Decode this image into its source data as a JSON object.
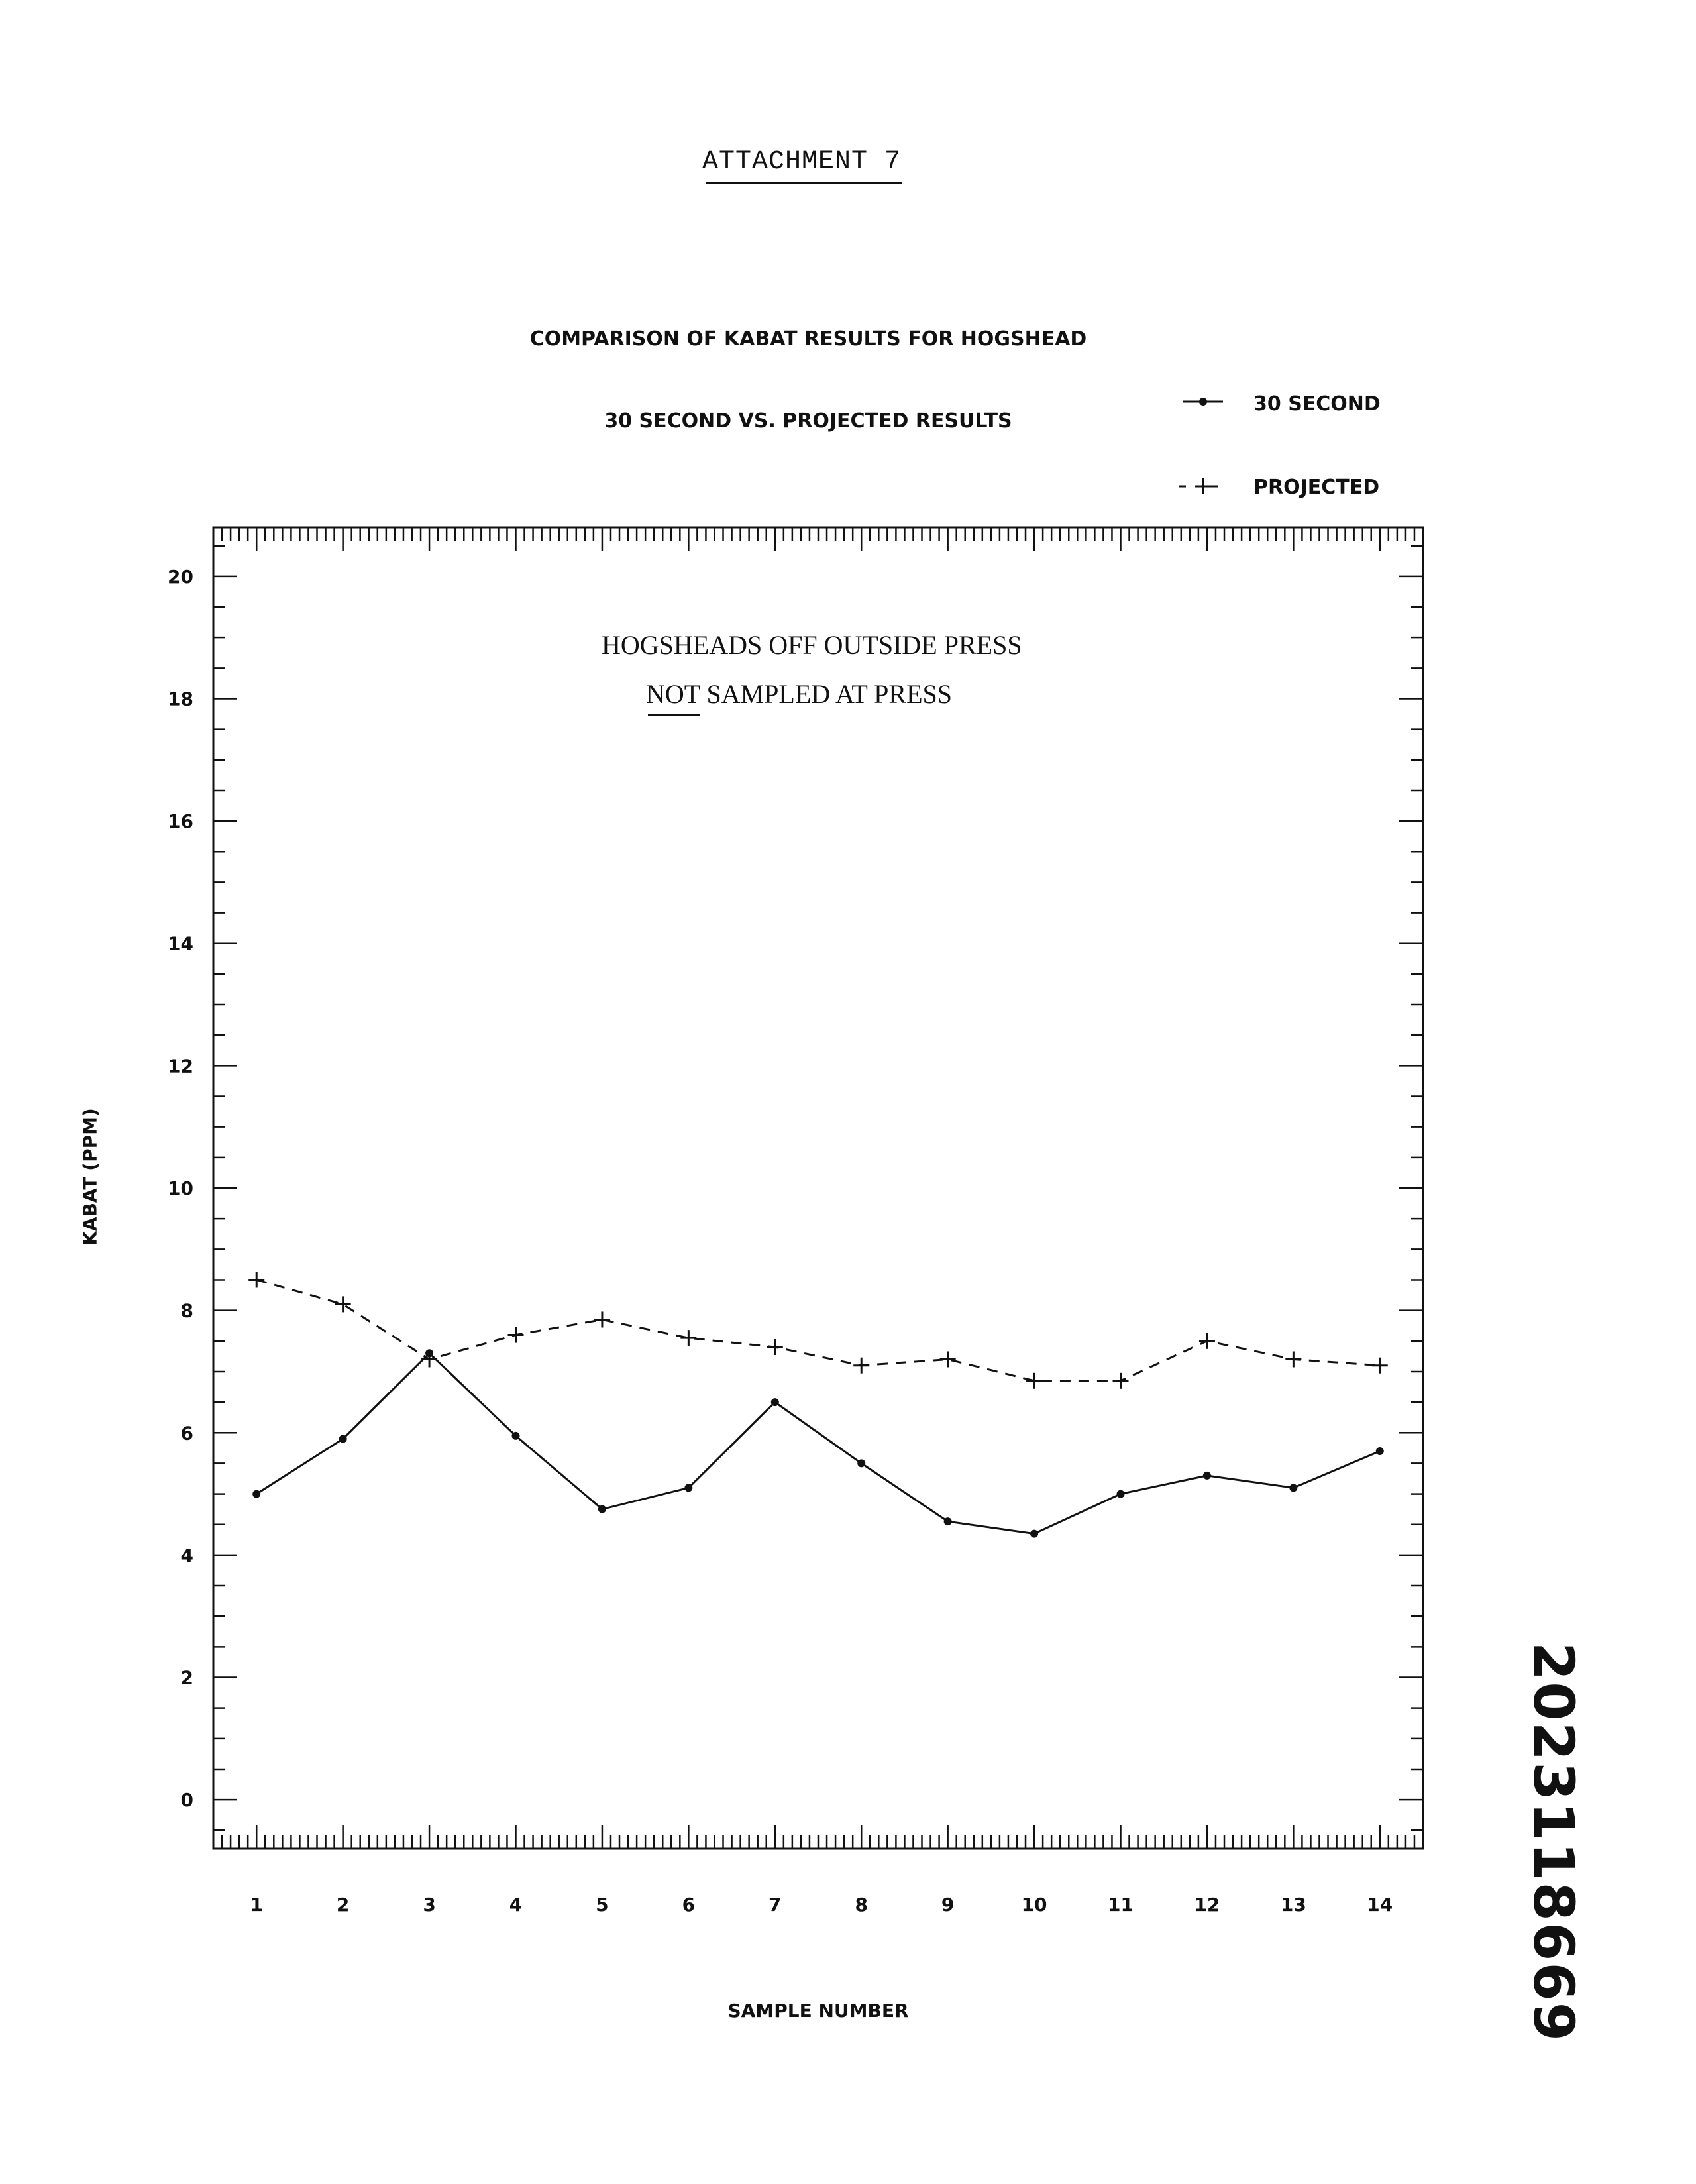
{
  "page": {
    "attachment": "ATTACHMENT 7",
    "note_line1": "HOGSHEADS OFF OUTSIDE PRESS",
    "note_line2_underlined": "NOT",
    "note_line2_rest": " SAMPLED AT PRESS",
    "document_number": "2023118669"
  },
  "chart_data": {
    "type": "line",
    "title": "COMPARISON OF KABAT RESULTS FOR HOGSHEAD",
    "subtitle": "30 SECOND VS. PROJECTED RESULTS",
    "xlabel": "SAMPLE NUMBER",
    "ylabel": "KABAT (PPM)",
    "x": [
      1,
      2,
      3,
      4,
      5,
      6,
      7,
      8,
      9,
      10,
      11,
      12,
      13,
      14
    ],
    "x_tick_labels": [
      "1",
      "2",
      "3",
      "4",
      "5",
      "6",
      "7",
      "8",
      "9",
      "10",
      "11",
      "12",
      "13",
      "14"
    ],
    "y_tick_labels": [
      "0",
      "2",
      "4",
      "6",
      "8",
      "10",
      "12",
      "14",
      "16",
      "18",
      "20"
    ],
    "y_ticks": [
      0,
      2,
      4,
      6,
      8,
      10,
      12,
      14,
      16,
      18,
      20
    ],
    "xlim": [
      0.5,
      14.5
    ],
    "ylim": [
      -0.8,
      20.8
    ],
    "grid": false,
    "legend_position": "top-right",
    "series": [
      {
        "name": "30 SECOND",
        "style": "solid line with dot markers",
        "values": [
          5.0,
          5.9,
          7.3,
          5.95,
          4.75,
          5.1,
          6.5,
          5.5,
          4.55,
          4.35,
          5.0,
          5.3,
          5.1,
          5.7
        ]
      },
      {
        "name": "PROJECTED",
        "style": "dashed line with plus markers",
        "values": [
          8.5,
          8.1,
          7.2,
          7.6,
          7.85,
          7.55,
          7.4,
          7.1,
          7.2,
          6.85,
          6.85,
          7.5,
          7.2,
          7.1
        ]
      }
    ],
    "colors": {
      "ink": "#111111",
      "background": "#ffffff"
    }
  }
}
